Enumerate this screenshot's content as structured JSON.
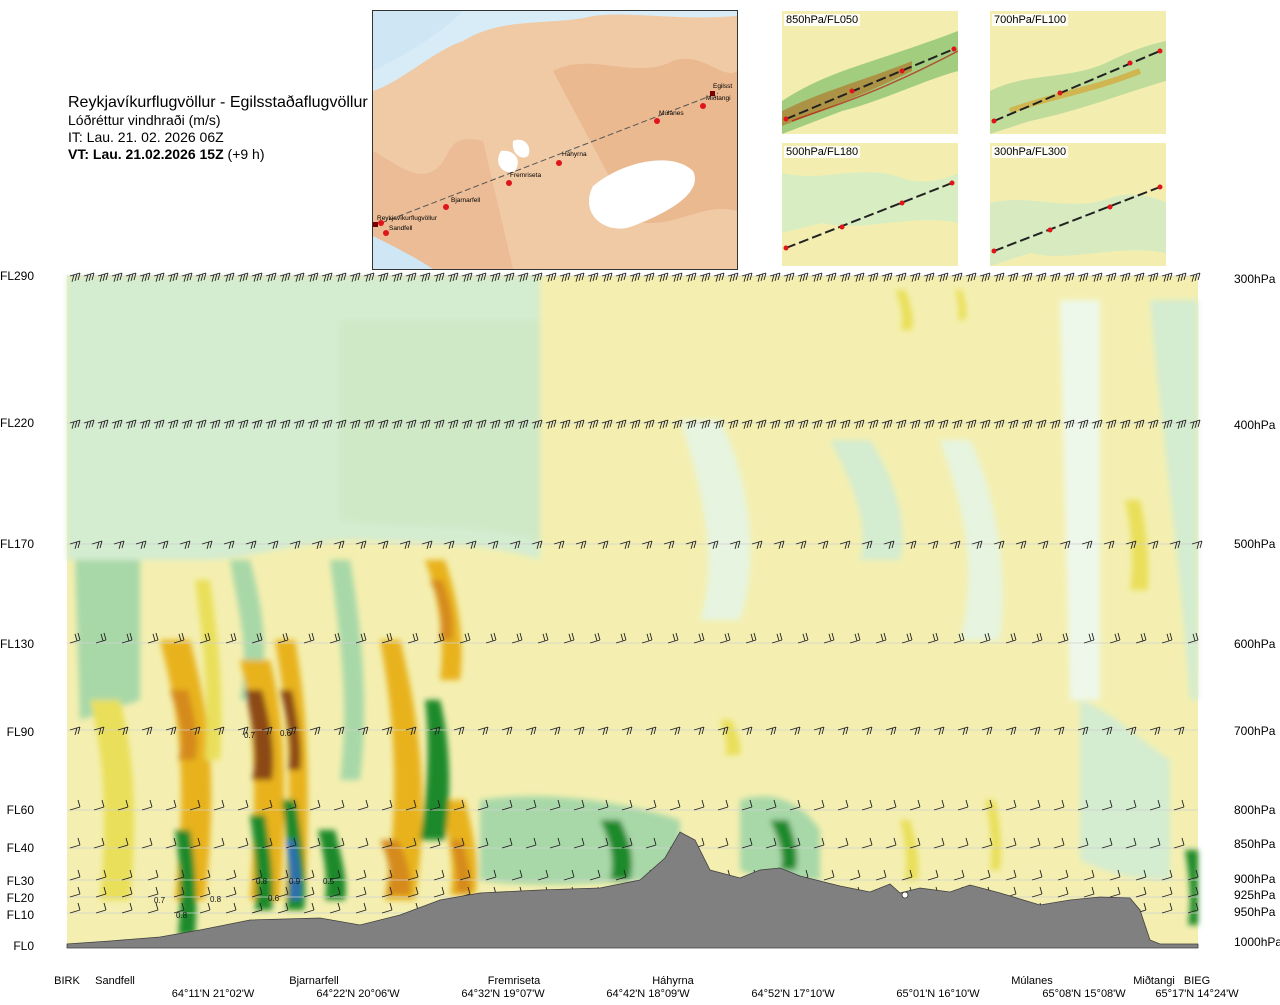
{
  "header": {
    "route": "Reykjavíkurflugvöllur - Egilsstaðaflugvöllur",
    "variable": "Lóðréttur vindhraði (m/s)",
    "it": "IT: Lau. 21. 02. 2026 06Z",
    "vt_bold": "VT: Lau. 21.02.2026 15Z",
    "vt_offset": " (+9 h)"
  },
  "map": {
    "places": [
      "Reykjavíkurflugvöllur",
      "Sandfell",
      "Bjarnarfell",
      "Fremriseta",
      "Háhyrna",
      "Múlanes",
      "Miðtangi",
      "Egilsst"
    ]
  },
  "thumbnails": [
    {
      "label": "850hPa/FL050"
    },
    {
      "label": "700hPa/FL100"
    },
    {
      "label": "500hPa/FL180"
    },
    {
      "label": "300hPa/FL300"
    }
  ],
  "colors": {
    "strong_down": "#2f6db5",
    "down3": "#1f8a2a",
    "down2": "#5aae5e",
    "down1": "#a8d8a8",
    "down0": "#d4ecd0",
    "neutral": "#eef8ea",
    "up0": "#f4efb0",
    "up1": "#e9df5a",
    "up2": "#e8b21a",
    "up3": "#d58a1a",
    "strong_up": "#8c4a14",
    "terrain": "#808080"
  },
  "chart_data": {
    "type": "heatmap",
    "title": "Reykjavíkurflugvöllur - Egilsstaðaflugvöllur",
    "value_label": "Lóðréttur vindhraði (m/s)",
    "left_axis_levels": [
      "FL290",
      "FL220",
      "FL170",
      "FL130",
      "FL90",
      "FL60",
      "FL40",
      "FL30",
      "FL20",
      "FL10",
      "FL0"
    ],
    "right_axis_levels": [
      "300hPa",
      "400hPa",
      "500hPa",
      "600hPa",
      "700hPa",
      "800hPa",
      "850hPa",
      "900hPa",
      "925hPa",
      "950hPa",
      "1000hPa"
    ],
    "stations": [
      "BIRK",
      "Sandfell",
      "Bjarnarfell",
      "Fremriseta",
      "Háhyrna",
      "Múlanes",
      "Miðtangi",
      "BIEG"
    ],
    "coordinates": [
      "64°11'N 21°02'W",
      "64°22'N 20°06'W",
      "64°32'N 19°07'W",
      "64°42'N 18°09'W",
      "64°52'N 17°10'W",
      "65°01'N 16°10'W",
      "65°08'N 15°08'W",
      "65°17'N 14°24'W"
    ],
    "annotations": [
      {
        "text": "0.7",
        "flight_level": "FL90",
        "near": "Sandfell"
      },
      {
        "text": "0.6",
        "flight_level": "FL90",
        "near": "Sandfell"
      },
      {
        "text": "0.7",
        "flight_level": "FL20",
        "near": "Sandfell"
      },
      {
        "text": "0.8",
        "flight_level": "FL20",
        "near": "Sandfell"
      },
      {
        "text": "0.8",
        "flight_level": "FL10",
        "near": "Sandfell"
      },
      {
        "text": "0.8",
        "flight_level": "FL30",
        "near": "Bjarnarfell"
      },
      {
        "text": "0.9",
        "flight_level": "FL30",
        "near": "Bjarnarfell"
      },
      {
        "text": "0.6",
        "flight_level": "FL20",
        "near": "Bjarnarfell"
      },
      {
        "text": "0.5",
        "flight_level": "FL30",
        "near": "Bjarnarfell"
      }
    ]
  }
}
